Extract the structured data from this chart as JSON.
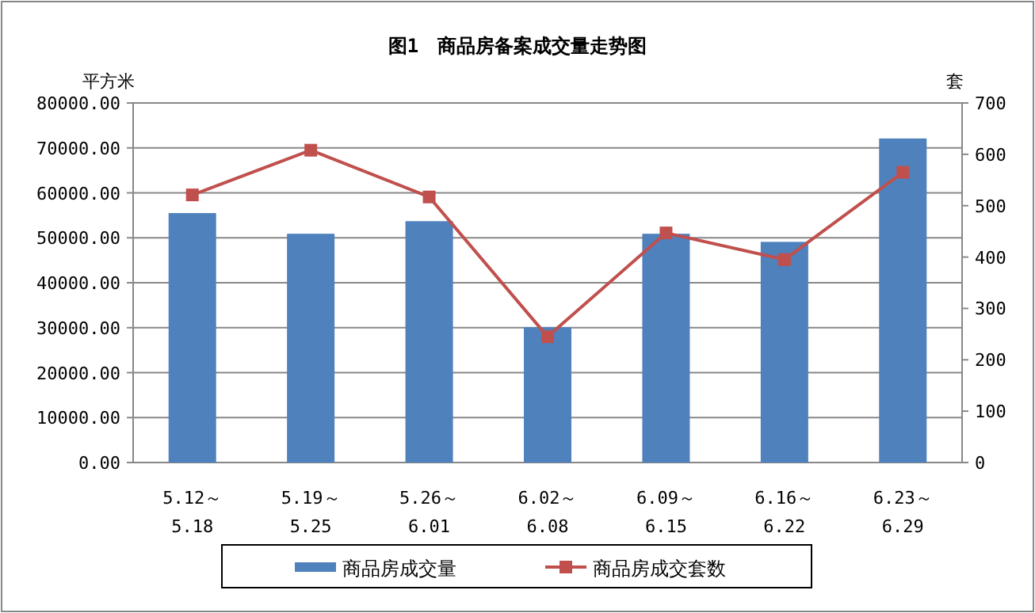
{
  "chart_data": {
    "type": "bar",
    "title": "图1　商品房备案成交量走势图",
    "ylabel": "平方米",
    "y2label": "套",
    "categories": [
      "5.12～\n5.18",
      "5.19～\n5.25",
      "5.26～\n6.01",
      "6.02～\n6.08",
      "6.09～\n6.15",
      "6.16～\n6.22",
      "6.23～\n6.29"
    ],
    "series": [
      {
        "name": "商品房成交量",
        "color": "#4f81bd",
        "values": [
          55500,
          50900,
          53700,
          30100,
          50900,
          49100,
          72100
        ]
      },
      {
        "name": "商品房成交套数",
        "type": "line",
        "axis": "y2",
        "color": "#c0504d",
        "marker": "square",
        "values": [
          521,
          608,
          517,
          245,
          447,
          395,
          565
        ]
      }
    ],
    "ylim": [
      0,
      80000
    ],
    "yticks": [
      {
        "value": 0,
        "label": "0.00"
      },
      {
        "value": 10000,
        "label": "10000.00"
      },
      {
        "value": 20000,
        "label": "20000.00"
      },
      {
        "value": 30000,
        "label": "30000.00"
      },
      {
        "value": 40000,
        "label": "40000.00"
      },
      {
        "value": 50000,
        "label": "50000.00"
      },
      {
        "value": 60000,
        "label": "60000.00"
      },
      {
        "value": 70000,
        "label": "70000.00"
      },
      {
        "value": 80000,
        "label": "80000.00"
      }
    ],
    "y2lim": [
      0,
      700
    ],
    "y2ticks": [
      0,
      100,
      200,
      300,
      400,
      500,
      600,
      700
    ],
    "grid": "y",
    "legend": "bottom"
  }
}
